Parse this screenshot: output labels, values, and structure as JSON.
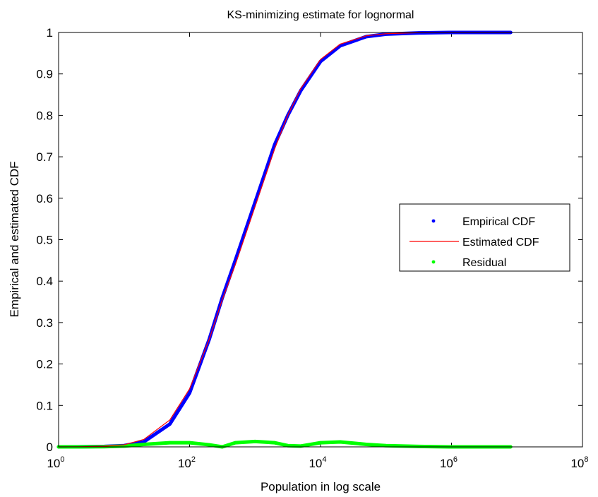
{
  "chart_data": {
    "type": "line",
    "title": "KS-minimizing estimate for lognormal",
    "xlabel": "Population in log scale",
    "ylabel": "Empirical and estimated CDF",
    "x_scale": "log",
    "xlim": [
      1,
      100000000
    ],
    "ylim": [
      0,
      1
    ],
    "x_ticks": [
      {
        "value": 1,
        "base": "10",
        "exp": "0"
      },
      {
        "value": 100,
        "base": "10",
        "exp": "2"
      },
      {
        "value": 10000,
        "base": "10",
        "exp": "4"
      },
      {
        "value": 1000000,
        "base": "10",
        "exp": "6"
      },
      {
        "value": 100000000,
        "base": "10",
        "exp": "8"
      }
    ],
    "y_ticks": [
      "0",
      "0.1",
      "0.2",
      "0.3",
      "0.4",
      "0.5",
      "0.6",
      "0.7",
      "0.8",
      "0.9",
      "1"
    ],
    "legend_position": "right",
    "series": [
      {
        "name": "Empirical CDF",
        "style": "dots",
        "color": "#0000ff",
        "x": [
          1,
          2,
          5,
          10,
          20,
          50,
          100,
          200,
          316,
          500,
          1000,
          2000,
          3162,
          5000,
          10000,
          20000,
          50000,
          100000,
          316228,
          1000000,
          3000000,
          8000000
        ],
        "y": [
          0.0,
          0.0002,
          0.001,
          0.003,
          0.012,
          0.055,
          0.13,
          0.26,
          0.36,
          0.45,
          0.59,
          0.73,
          0.8,
          0.86,
          0.93,
          0.968,
          0.99,
          0.996,
          0.999,
          1.0,
          1.0,
          1.0
        ]
      },
      {
        "name": "Estimated CDF",
        "style": "line",
        "color": "#ff0000",
        "x": [
          1,
          2,
          5,
          10,
          20,
          50,
          100,
          200,
          316,
          500,
          1000,
          2000,
          3162,
          5000,
          10000,
          20000,
          50000,
          100000,
          316228,
          1000000,
          3000000,
          8000000
        ],
        "y": [
          0.0,
          0.0003,
          0.0015,
          0.005,
          0.018,
          0.065,
          0.14,
          0.26,
          0.355,
          0.44,
          0.58,
          0.72,
          0.8,
          0.865,
          0.935,
          0.972,
          0.992,
          0.997,
          0.9995,
          1.0,
          1.0,
          1.0
        ]
      },
      {
        "name": "Residual",
        "style": "dots",
        "color": "#00ff00",
        "x": [
          1,
          2,
          5,
          10,
          20,
          50,
          100,
          200,
          316,
          500,
          1000,
          2000,
          3162,
          5000,
          10000,
          20000,
          50000,
          100000,
          316228,
          1000000,
          3000000,
          8000000
        ],
        "y": [
          0.0,
          0.0001,
          0.0005,
          0.002,
          0.006,
          0.01,
          0.01,
          0.005,
          0.0,
          0.01,
          0.013,
          0.01,
          0.003,
          0.002,
          0.01,
          0.012,
          0.006,
          0.003,
          0.001,
          0.0,
          0.0,
          0.0
        ]
      }
    ]
  }
}
